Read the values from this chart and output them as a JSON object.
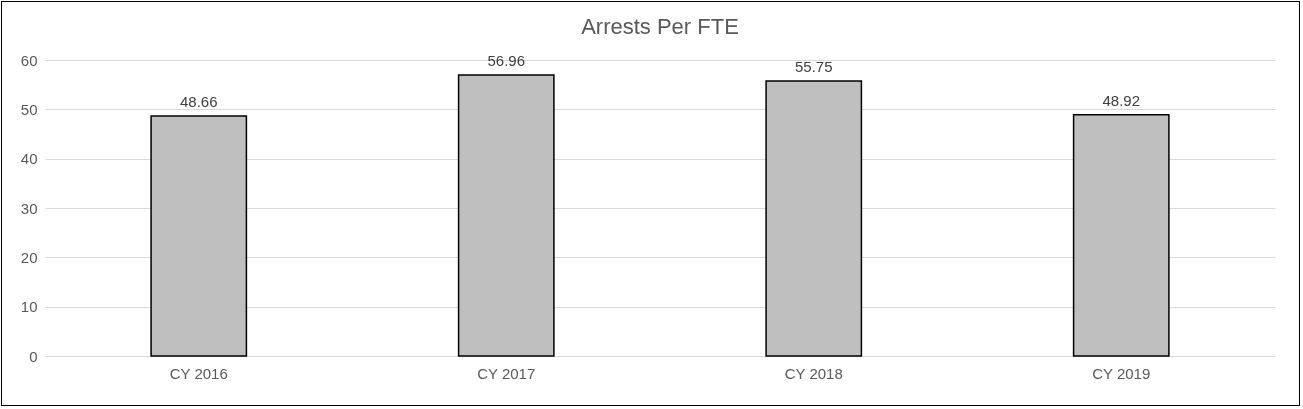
{
  "chart_data": {
    "type": "bar",
    "title": "Arrests Per FTE",
    "categories": [
      "CY 2016",
      "CY 2017",
      "CY 2018",
      "CY 2019"
    ],
    "values": [
      48.66,
      56.96,
      55.75,
      48.92
    ],
    "color": "#bfbfbf",
    "ylim": [
      0,
      60
    ],
    "yticks": [
      0,
      10,
      20,
      30,
      40,
      50,
      60
    ],
    "grid": "y",
    "data_labels": true
  }
}
